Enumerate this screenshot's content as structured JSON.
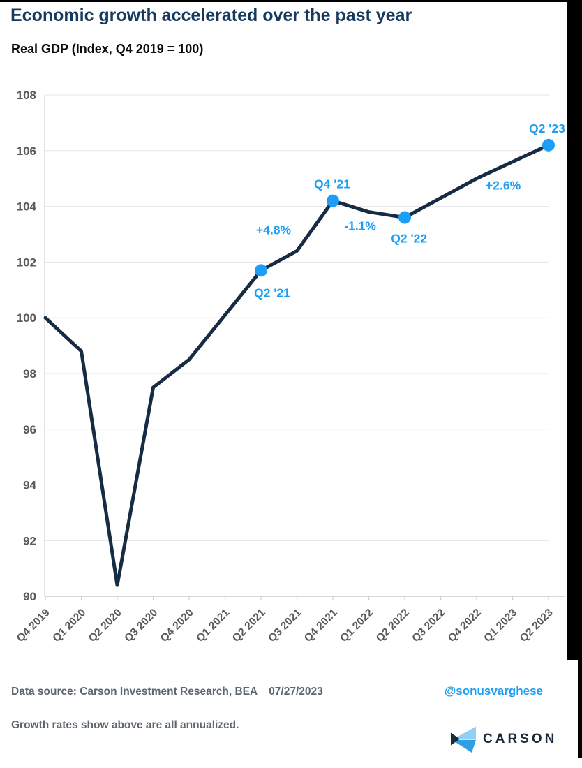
{
  "header": {
    "title": "Economic growth accelerated over the past year",
    "subtitle": "Real GDP (Index, Q4 2019 = 100)"
  },
  "chart_data": {
    "type": "line",
    "title": "Economic growth accelerated over the past year",
    "subtitle": "Real GDP (Index, Q4 2019 = 100)",
    "categories": [
      "Q4 2019",
      "Q1 2020",
      "Q2 2020",
      "Q3 2020",
      "Q4 2020",
      "Q1 2021",
      "Q2 2021",
      "Q3 2021",
      "Q4 2021",
      "Q1 2022",
      "Q2 2022",
      "Q3 2022",
      "Q4 2022",
      "Q1 2023",
      "Q2 2023"
    ],
    "values": [
      100,
      98.8,
      90.4,
      97.5,
      98.5,
      100.1,
      101.7,
      102.4,
      104.2,
      103.8,
      103.6,
      104.3,
      105.0,
      105.6,
      106.2
    ],
    "ylim": [
      90,
      108
    ],
    "ytick_step": 2,
    "grid": "horizontal",
    "legend": "none",
    "markers": [
      "Q2 2021",
      "Q4 2021",
      "Q2 2022",
      "Q2 2023"
    ],
    "annotations": [
      {
        "text": "Q2 '21",
        "xi": 6.31,
        "value": 100.9
      },
      {
        "text": "+4.8%",
        "xi": 6.35,
        "value": 103.15
      },
      {
        "text": "Q4 '21",
        "xi": 7.98,
        "value": 104.8
      },
      {
        "text": "-1.1%",
        "xi": 8.76,
        "value": 103.3
      },
      {
        "text": "Q2 '22",
        "xi": 10.12,
        "value": 102.85
      },
      {
        "text": "+2.6%",
        "xi": 12.74,
        "value": 104.75
      },
      {
        "text": "Q2 '23",
        "xi": 13.96,
        "value": 106.8
      }
    ]
  },
  "footer": {
    "data_source": "Data source: Carson Investment Research, BEA",
    "date": "07/27/2023",
    "handle": "@sonusvarghese",
    "note": "Growth rates show above are all annualized.",
    "logo_text": "CARSON"
  },
  "colors": {
    "accent_blue": "#1C9EF5",
    "line_navy": "#172C44",
    "title_navy": "#17395E",
    "axis_gray": "#595959",
    "grid_gray": "#E4E4E4",
    "axis_line_gray": "#CFCFCF",
    "footer_gray": "#5D6770",
    "logo_light_blue": "#93CFF4",
    "logo_blue": "#2E9EE8",
    "logo_navy": "#1C2B3A",
    "edge_black": "#000000"
  }
}
